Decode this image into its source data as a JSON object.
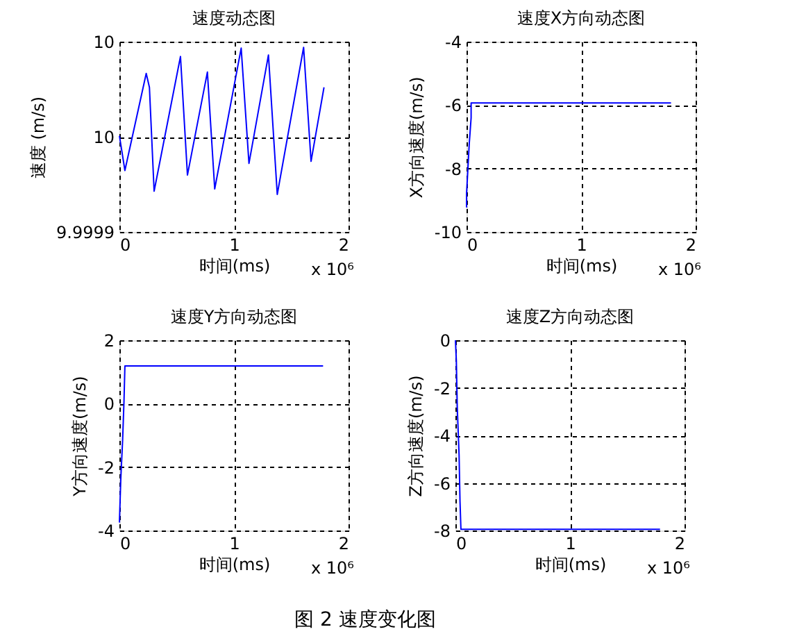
{
  "chart_data": [
    {
      "type": "line",
      "title": "速度动态图",
      "xlabel": "时间(ms)",
      "ylabel": "速度 (m/s)",
      "x": [
        0,
        0.048,
        0.234,
        0.262,
        0.303,
        0.533,
        0.594,
        0.768,
        0.832,
        1.063,
        1.131,
        1.301,
        1.378,
        1.608,
        1.673,
        1.786
      ],
      "series": [
        {
          "color": "#0000ff",
          "values": [
            9.9999505,
            9.9999323,
            9.9999833,
            9.999976,
            9.9999214,
            9.9999922,
            9.9999299,
            9.999984,
            9.9999226,
            9.9999966,
            9.999936,
            9.999993,
            9.9999197,
            9.999997,
            9.9999371,
            9.999976
          ]
        }
      ],
      "xlim": [
        0,
        2
      ],
      "xticks": [
        0,
        1,
        2
      ],
      "ylim": [
        9.9999,
        10.0
      ],
      "yticks": [
        9.9999,
        {
          "value": 9.99995,
          "label": "10"
        },
        {
          "value": 10.0,
          "label": "10"
        }
      ],
      "grid": true,
      "annotations": [
        "x 10⁶"
      ]
    },
    {
      "type": "line",
      "title": "速度X方向动态图",
      "xlabel": "时间(ms)",
      "ylabel": "X方向速度(m/s)",
      "x": [
        0,
        0,
        0.012,
        0.024,
        0.04,
        0.04,
        1.785
      ],
      "series": [
        {
          "color": "#0000ff",
          "values": [
            -9.23,
            -8.8,
            -8.0,
            -7.2,
            -6.4,
            -5.93,
            -5.93
          ]
        }
      ],
      "xlim": [
        0,
        2
      ],
      "xticks": [
        0,
        1,
        2
      ],
      "ylim": [
        -10,
        -4
      ],
      "yticks": [
        -10,
        -8,
        -6,
        -4
      ],
      "grid": true,
      "annotations": [
        "x 10⁶"
      ]
    },
    {
      "type": "line",
      "title": "速度Y方向动态图",
      "xlabel": "时间(ms)",
      "ylabel": "Y方向速度(m/s)",
      "x": [
        0,
        0.012,
        0.028,
        0.04,
        0.048,
        1.778
      ],
      "series": [
        {
          "color": "#0000ff",
          "values": [
            -3.75,
            -2.38,
            -1.15,
            0.08,
            1.19,
            1.19
          ]
        }
      ],
      "xlim": [
        0,
        2
      ],
      "xticks": [
        0,
        1,
        2
      ],
      "ylim": [
        -4,
        2
      ],
      "yticks": [
        -4,
        -2,
        0,
        2
      ],
      "grid": true,
      "annotations": [
        "x 10⁶"
      ]
    },
    {
      "type": "line",
      "title": "速度Z方向动态图",
      "xlabel": "时间(ms)",
      "ylabel": "Z方向速度(m/s)",
      "x": [
        0,
        0.008,
        0.016,
        0.032,
        0.04,
        0.048,
        1.786
      ],
      "series": [
        {
          "color": "#0000ff",
          "values": [
            0,
            -0.87,
            -2.8,
            -4.84,
            -6.78,
            -7.95,
            -7.95
          ]
        }
      ],
      "xlim": [
        0,
        2
      ],
      "xticks": [
        0,
        1,
        2
      ],
      "ylim": [
        -8,
        0
      ],
      "yticks": [
        -8,
        -6,
        -4,
        -2,
        0
      ],
      "grid": true,
      "annotations": [
        "x 10⁶",
        "图 2  速度变化图"
      ]
    }
  ]
}
